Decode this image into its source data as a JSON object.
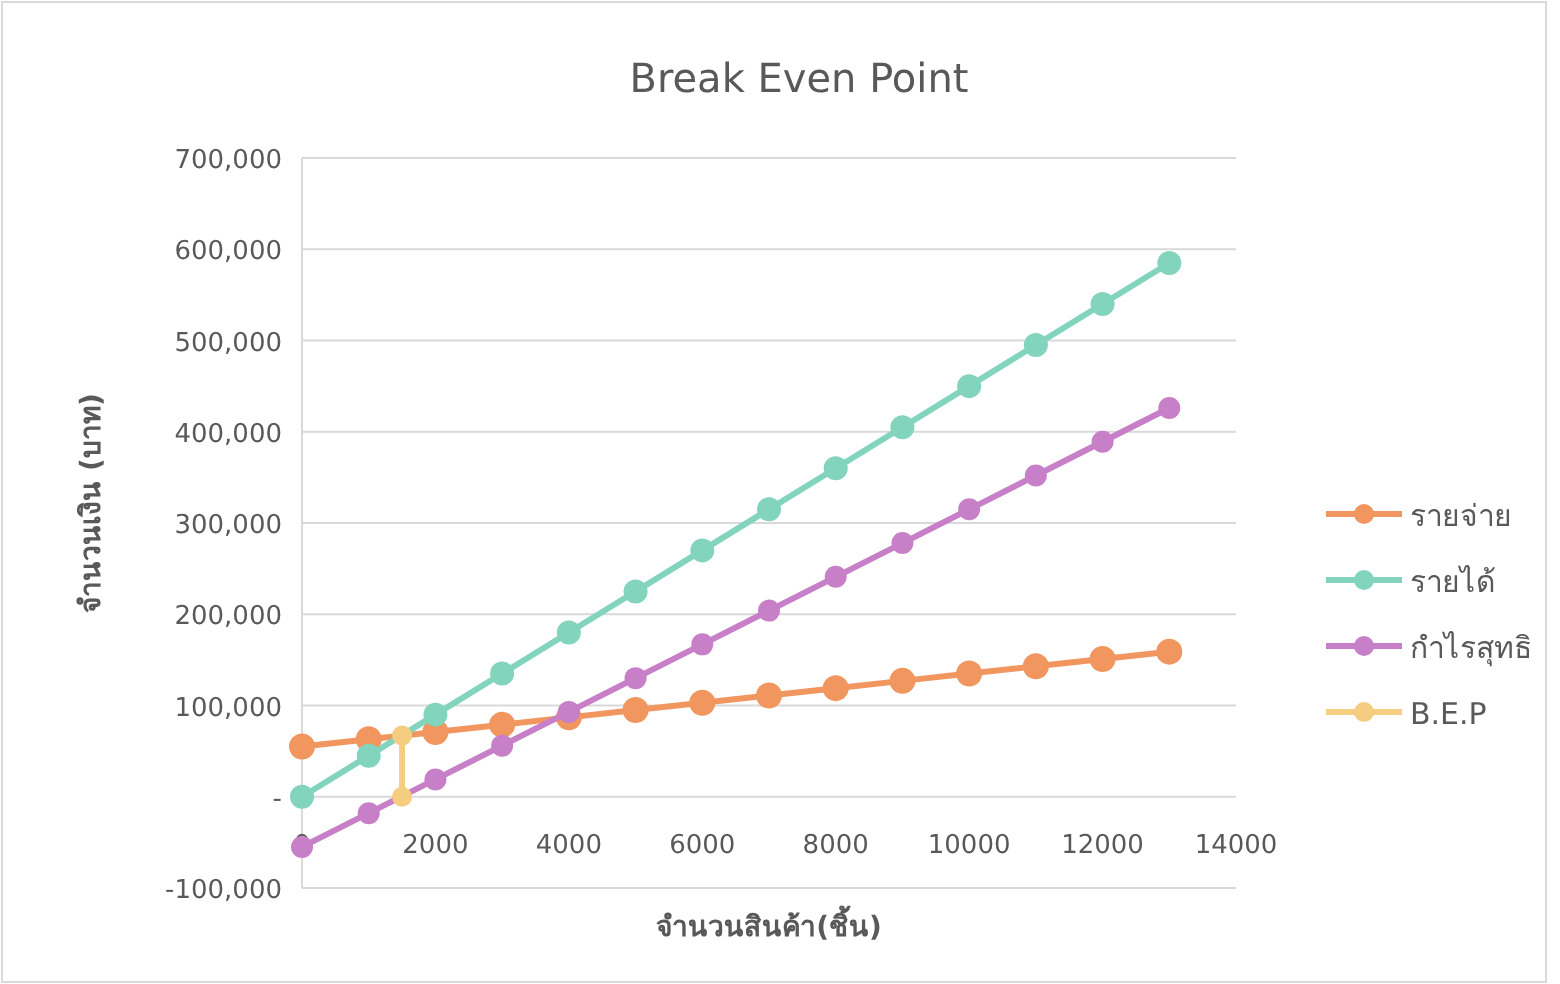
{
  "chart_data": {
    "type": "line",
    "title": "Break Even Point",
    "xlabel": "จำนวนสินค้า(ชิ้น)",
    "ylabel": "จำนวนเงิน (บาท)",
    "x": [
      0,
      1000,
      2000,
      3000,
      4000,
      5000,
      6000,
      7000,
      8000,
      9000,
      10000,
      11000,
      12000,
      13000
    ],
    "series": [
      {
        "name": "รายจ่าย",
        "color": "#f0965e",
        "values": [
          55000,
          63000,
          71000,
          79000,
          87000,
          95000,
          103000,
          111000,
          119000,
          127000,
          135000,
          143000,
          151000,
          159000
        ]
      },
      {
        "name": "รายได้",
        "color": "#82d4bd",
        "values": [
          0,
          45000,
          90000,
          135000,
          180000,
          225000,
          270000,
          315000,
          360000,
          405000,
          450000,
          495000,
          540000,
          585000
        ]
      },
      {
        "name": "กำไรสุทธิ",
        "color": "#c77fc7",
        "values": [
          -55000,
          -18000,
          19000,
          56000,
          93000,
          130000,
          167000,
          204000,
          241000,
          278000,
          315000,
          352000,
          389000,
          426000
        ]
      },
      {
        "name": "B.E.P",
        "color": "#f5cd80",
        "x": [
          1500,
          1500
        ],
        "values": [
          0,
          67000
        ]
      }
    ],
    "xlim": [
      0,
      14000
    ],
    "xticks": [
      0,
      2000,
      4000,
      6000,
      8000,
      10000,
      12000,
      14000
    ],
    "ylim": [
      -100000,
      700000
    ],
    "yticks": [
      {
        "value": -100000,
        "label": "-100,000"
      },
      {
        "value": 0,
        "label": "-"
      },
      {
        "value": 100000,
        "label": "100,000"
      },
      {
        "value": 200000,
        "label": "200,000"
      },
      {
        "value": 300000,
        "label": "300,000"
      },
      {
        "value": 400000,
        "label": "400,000"
      },
      {
        "value": 500000,
        "label": "500,000"
      },
      {
        "value": 600000,
        "label": "600,000"
      },
      {
        "value": 700000,
        "label": "700,000"
      }
    ],
    "grid": "y",
    "legend": "right",
    "marker": "circle",
    "line_style": "solid"
  }
}
